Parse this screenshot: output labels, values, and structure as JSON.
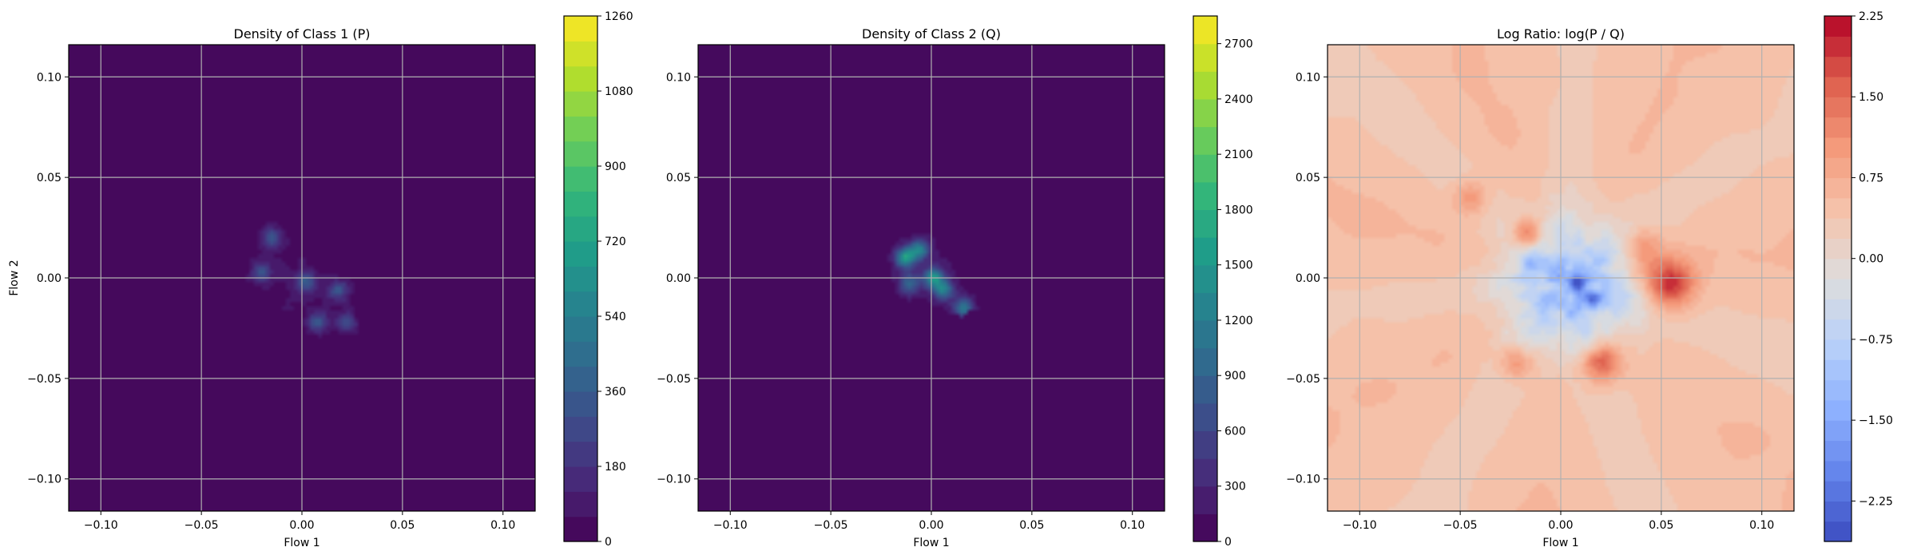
{
  "chart_data": [
    {
      "type": "heatmap",
      "title": "Density of Class 1 (P)",
      "xlabel": "Flow 1",
      "ylabel": "Flow 2",
      "xlim": [
        -0.116,
        0.116
      ],
      "ylim": [
        -0.116,
        0.116
      ],
      "xticks": [
        -0.1,
        -0.05,
        0.0,
        0.05,
        0.1
      ],
      "yticks": [
        -0.1,
        -0.05,
        0.0,
        0.05,
        0.1
      ],
      "xtick_labels": [
        "−0.10",
        "−0.05",
        "0.00",
        "0.05",
        "0.10"
      ],
      "ytick_labels": [
        "−0.10",
        "−0.05",
        "0.00",
        "0.05",
        "0.10"
      ],
      "grid": true,
      "colormap": "viridis",
      "colorbar": {
        "min": 0,
        "max": 1260,
        "ticks": [
          0,
          180,
          360,
          540,
          720,
          900,
          1080,
          1260
        ],
        "tick_labels": [
          "0",
          "180",
          "360",
          "540",
          "720",
          "900",
          "1080",
          "1260"
        ],
        "levels": 21,
        "visible_fraction": 1.0
      },
      "blob": {
        "center": [
          -0.002,
          -0.003
        ],
        "extent": [
          0.036,
          0.028
        ],
        "tilt_deg": -32,
        "peaks": [
          {
            "x": -0.015,
            "y": 0.02,
            "value": 320
          },
          {
            "x": 0.002,
            "y": -0.002,
            "value": 330
          },
          {
            "x": 0.018,
            "y": -0.006,
            "value": 300
          },
          {
            "x": 0.008,
            "y": -0.022,
            "value": 310
          },
          {
            "x": -0.02,
            "y": 0.003,
            "value": 280
          },
          {
            "x": 0.022,
            "y": -0.022,
            "value": 260
          }
        ],
        "background_value": 0
      }
    },
    {
      "type": "heatmap",
      "title": "Density of Class 2 (Q)",
      "xlabel": "Flow 1",
      "ylabel": "",
      "xlim": [
        -0.116,
        0.116
      ],
      "ylim": [
        -0.116,
        0.116
      ],
      "xticks": [
        -0.1,
        -0.05,
        0.0,
        0.05,
        0.1
      ],
      "yticks": [
        -0.1,
        -0.05,
        0.0,
        0.05,
        0.1
      ],
      "xtick_labels": [
        "−0.10",
        "−0.05",
        "0.00",
        "0.05",
        "0.10"
      ],
      "ytick_labels": [
        "−0.10",
        "−0.05",
        "0.00",
        "0.05",
        "0.10"
      ],
      "grid": true,
      "colormap": "viridis",
      "colorbar": {
        "min": 0,
        "max": 2850,
        "ticks": [
          0,
          300,
          600,
          900,
          1200,
          1500,
          1800,
          2100,
          2400,
          2700
        ],
        "tick_labels": [
          "0",
          "300",
          "600",
          "900",
          "1200",
          "1500",
          "1800",
          "2100",
          "2400",
          "2700"
        ],
        "levels": 19,
        "visible_fraction": 1.0
      },
      "blob": {
        "center": [
          0.002,
          0.002
        ],
        "extent": [
          0.026,
          0.02
        ],
        "tilt_deg": -30,
        "peaks": [
          {
            "x": -0.013,
            "y": 0.01,
            "value": 1500
          },
          {
            "x": -0.006,
            "y": 0.014,
            "value": 1200
          },
          {
            "x": 0.001,
            "y": 0.0,
            "value": 1350
          },
          {
            "x": 0.006,
            "y": -0.006,
            "value": 1100
          },
          {
            "x": 0.016,
            "y": -0.015,
            "value": 1050
          },
          {
            "x": -0.011,
            "y": -0.003,
            "value": 900
          }
        ],
        "background_value": 60
      }
    },
    {
      "type": "heatmap",
      "title": "Log Ratio: log(P / Q)",
      "xlabel": "Flow 1",
      "ylabel": "",
      "xlim": [
        -0.116,
        0.116
      ],
      "ylim": [
        -0.116,
        0.116
      ],
      "xticks": [
        -0.1,
        -0.05,
        0.0,
        0.05,
        0.1
      ],
      "yticks": [
        -0.1,
        -0.05,
        0.0,
        0.05,
        0.1
      ],
      "xtick_labels": [
        "−0.10",
        "−0.05",
        "0.00",
        "0.05",
        "0.10"
      ],
      "ytick_labels": [
        "−0.10",
        "−0.05",
        "0.00",
        "0.05",
        "0.10"
      ],
      "grid": true,
      "colormap": "coolwarm",
      "colorbar": {
        "min": -2.625,
        "max": 2.25,
        "ticks": [
          -2.25,
          -1.5,
          -0.75,
          0.0,
          0.75,
          1.5,
          2.25
        ],
        "tick_labels": [
          "−2.25",
          "−1.50",
          "−0.75",
          "0.00",
          "0.75",
          "1.50",
          "2.25"
        ],
        "levels": 26,
        "visible_fraction": 1.0
      },
      "field": {
        "background_value": 0.45,
        "center_low": {
          "x": 0.005,
          "y": -0.005,
          "value": -1.2,
          "radius": 0.032
        },
        "hot_spots": [
          {
            "x": 0.054,
            "y": -0.003,
            "value": 2.0,
            "radius": 0.012
          },
          {
            "x": 0.02,
            "y": -0.042,
            "value": 1.8,
            "radius": 0.01
          },
          {
            "x": -0.017,
            "y": 0.022,
            "value": 1.7,
            "radius": 0.007
          },
          {
            "x": -0.022,
            "y": -0.042,
            "value": 1.2,
            "radius": 0.008
          },
          {
            "x": -0.045,
            "y": 0.04,
            "value": 1.0,
            "radius": 0.008
          },
          {
            "x": 0.04,
            "y": 0.015,
            "value": 1.1,
            "radius": 0.01
          }
        ],
        "cold_spots": [
          {
            "x": 0.008,
            "y": -0.003,
            "value": -2.4,
            "radius": 0.004
          },
          {
            "x": 0.016,
            "y": -0.012,
            "value": -2.0,
            "radius": 0.004
          },
          {
            "x": -0.015,
            "y": 0.008,
            "value": -1.6,
            "radius": 0.004
          }
        ]
      }
    }
  ]
}
